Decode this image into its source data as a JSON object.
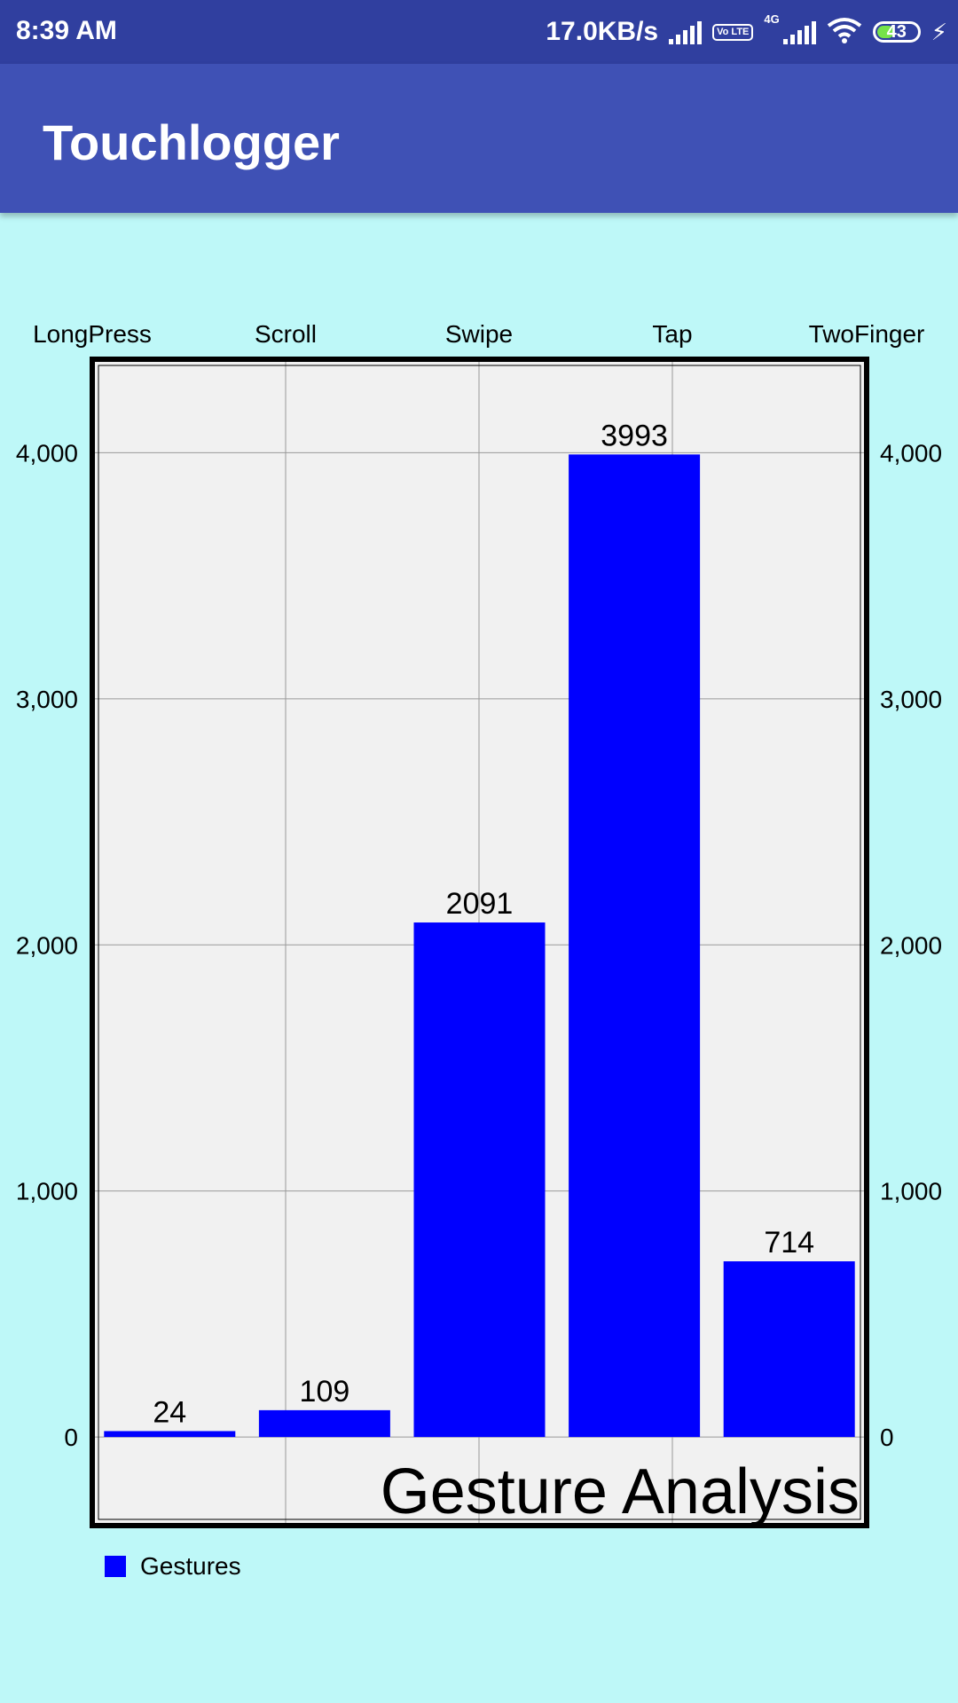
{
  "status_bar": {
    "time": "8:39 AM",
    "net_speed": "17.0KB/s",
    "volte": "Vo LTE",
    "network": "4G",
    "battery": "43",
    "battery_level": 0.43
  },
  "app_bar": {
    "title": "Touchlogger"
  },
  "chart_data": {
    "type": "bar",
    "title": "Gesture Analysis",
    "categories": [
      "LongPress",
      "Scroll",
      "Swipe",
      "Tap",
      "TwoFinger"
    ],
    "series": [
      {
        "name": "Gestures",
        "values": [
          24,
          109,
          2091,
          3993,
          714
        ],
        "color": "#0000ff"
      }
    ],
    "data_labels": [
      "24",
      "109",
      "2091",
      "3993",
      "714"
    ],
    "y_ticks": [
      0,
      1000,
      2000,
      3000,
      4000
    ],
    "y_tick_labels": [
      "0",
      "1,000",
      "2,000",
      "3,000",
      "4,000"
    ],
    "ylim": [
      -360,
      4380
    ],
    "grid": true,
    "legend_position": "bottom-left",
    "plot_background": "#f1f1f1"
  }
}
